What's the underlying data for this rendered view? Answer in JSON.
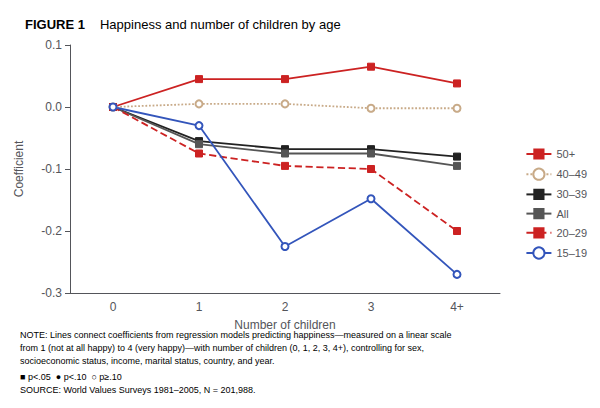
{
  "chart_data": {
    "type": "line",
    "title": "FIGURE 1",
    "subtitle": "Happiness and number of children by age",
    "xlabel": "Number of children",
    "ylabel": "Coefficient",
    "categories": [
      "0",
      "1",
      "2",
      "3",
      "4+"
    ],
    "ylim": [
      -0.3,
      0.1
    ],
    "yticks": [
      -0.3,
      -0.2,
      -0.1,
      {
        "value": 0.0,
        "label": "0.0"
      },
      0.1
    ],
    "grid": false,
    "legend": "right",
    "series": [
      {
        "name": "50+",
        "color": "#cc2222",
        "line_style": "solid",
        "marker": "square",
        "values": [
          0.0,
          0.045,
          0.045,
          0.065,
          0.038
        ]
      },
      {
        "name": "40–49",
        "color": "#c8aa88",
        "line_style": "dotted",
        "marker": "hollow_circle",
        "values": [
          0.0,
          0.005,
          0.005,
          -0.002,
          -0.002
        ]
      },
      {
        "name": "30–39",
        "color": "#222222",
        "line_style": "solid",
        "marker": "square",
        "values": [
          0.0,
          -0.055,
          -0.068,
          -0.068,
          -0.08
        ]
      },
      {
        "name": "All",
        "color": "#555555",
        "line_style": "solid",
        "marker": "square",
        "values": [
          0.0,
          -0.06,
          -0.075,
          -0.075,
          -0.095
        ]
      },
      {
        "name": "20–29",
        "color": "#cc2222",
        "line_style": "dashed",
        "marker": "square",
        "values": [
          0.0,
          -0.075,
          -0.095,
          -0.1,
          -0.2
        ]
      },
      {
        "name": "15–19",
        "color": "#3355bb",
        "line_style": "solid",
        "marker": "hollow_circle",
        "values": [
          0.0,
          -0.03,
          -0.225,
          -0.148,
          -0.27
        ]
      }
    ],
    "annotations": [
      "NOTE: Lines connect coefficients from regression models predicting happiness—measured on a linear scale",
      "from 1 (not at all happy) to 4 (very happy)—with number of children (0, 1, 2, 3, 4+), controlling for sex,",
      "socioeconomic status, income, marital status, country, and year.",
      "■ p<.05  ● p<.10  ○ p≥.10",
      "SOURCE: World Values Surveys 1981–2005, N = 201,988."
    ]
  }
}
